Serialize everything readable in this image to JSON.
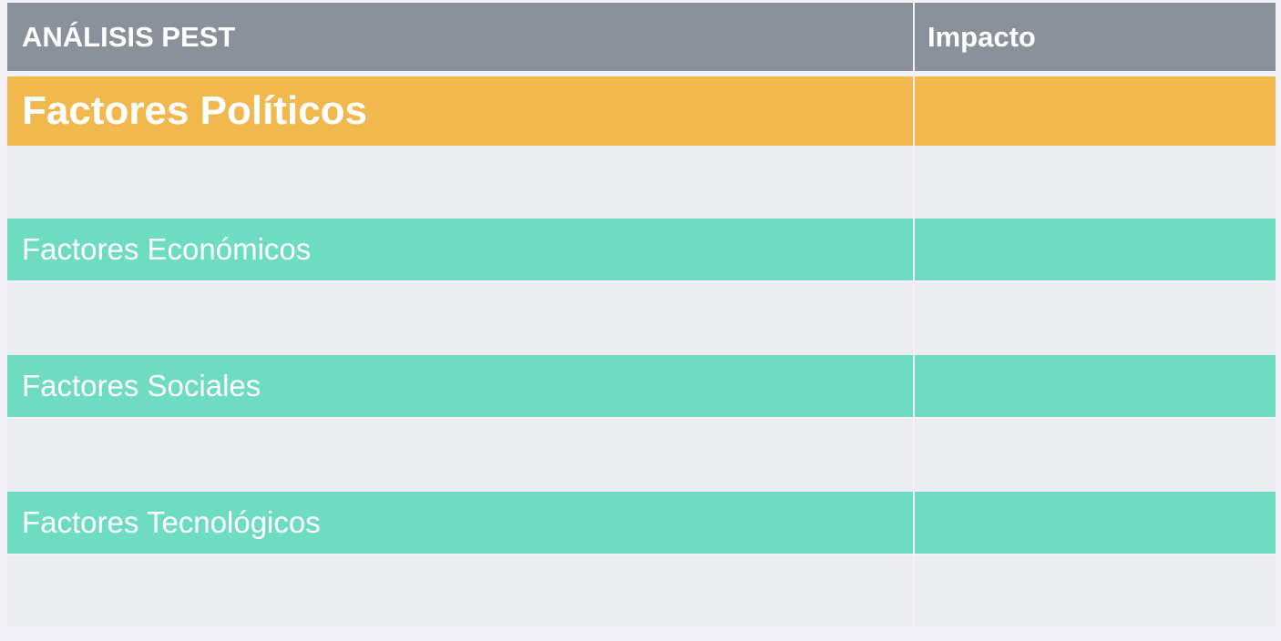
{
  "table": {
    "header": {
      "title": "ANÁLISIS PEST",
      "impact": "Impacto"
    },
    "sections": [
      {
        "label": "Factores Políticos",
        "impact": ""
      },
      {
        "label": "Factores Económicos",
        "impact": ""
      },
      {
        "label": "Factores Sociales",
        "impact": ""
      },
      {
        "label": "Factores Tecnológicos",
        "impact": ""
      }
    ]
  },
  "colors": {
    "header_bg": "#8a919b",
    "political_bg": "#f0b84d",
    "section_bg": "#6ddcc0",
    "empty_row_bg": "#ecedef",
    "page_bg": "#f1f1f7"
  }
}
